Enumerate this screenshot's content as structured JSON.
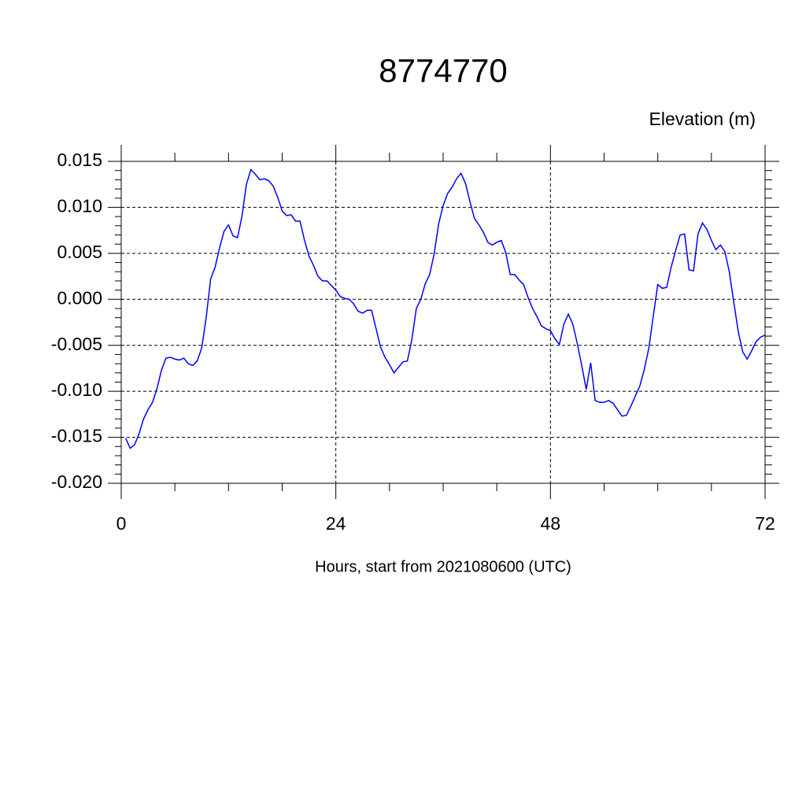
{
  "chart_data": {
    "type": "line",
    "title": "8774770",
    "ylabel": "Elevation (m)",
    "xlabel": "Hours, start from 2021080600 (UTC)",
    "xlim": [
      0,
      72
    ],
    "xticks": [
      0,
      24,
      48,
      72
    ],
    "xminorticks": [
      6,
      12,
      18,
      30,
      36,
      42,
      54,
      60,
      66
    ],
    "ylim": [
      -0.02,
      0.015
    ],
    "yticks": [
      {
        "value": -0.02,
        "label": "-0.020"
      },
      -0.015,
      {
        "value": -0.01,
        "label": "-0.010"
      },
      -0.005,
      {
        "value": 0,
        "label": "0.000"
      },
      0.005,
      {
        "value": 0.01,
        "label": "0.010"
      },
      0.015
    ],
    "yminorticks": [
      -0.019,
      -0.018,
      -0.017,
      -0.016,
      -0.014,
      -0.013,
      -0.012,
      -0.011,
      -0.009,
      -0.008,
      -0.007,
      -0.006,
      -0.004,
      -0.003,
      -0.002,
      -0.001,
      0.001,
      0.002,
      0.003,
      0.004,
      0.006,
      0.007,
      0.008,
      0.009,
      0.011,
      0.012,
      0.013,
      0.014
    ],
    "grid": true,
    "x": [
      0.5,
      1,
      1.5,
      2,
      2.5,
      3,
      3.5,
      4,
      4.5,
      5,
      5.5,
      6,
      6.5,
      7,
      7.5,
      8,
      8.5,
      9,
      9.5,
      10,
      10.5,
      11,
      11.5,
      12,
      12.5,
      13,
      13.5,
      14,
      14.5,
      15,
      15.5,
      16,
      16.5,
      17,
      17.5,
      18,
      18.5,
      19,
      19.5,
      20,
      20.5,
      21,
      21.5,
      22,
      22.5,
      23,
      23.5,
      24,
      24.5,
      25,
      25.5,
      26,
      26.5,
      27,
      27.5,
      28,
      28.5,
      29,
      29.5,
      30,
      30.5,
      31,
      31.5,
      32,
      32.5,
      33,
      33.5,
      34,
      34.5,
      35,
      35.5,
      36,
      36.5,
      37,
      37.5,
      38,
      38.5,
      39,
      39.5,
      40,
      40.5,
      41,
      41.5,
      42,
      42.5,
      43,
      43.5,
      44,
      44.5,
      45,
      45.5,
      46,
      46.5,
      47,
      47.5,
      48,
      48.5,
      49,
      49.5,
      50,
      50.5,
      51,
      51.5,
      52,
      52.5,
      53,
      53.5,
      54,
      54.5,
      55,
      55.5,
      56,
      56.5,
      57,
      57.5,
      58,
      58.5,
      59,
      59.5,
      60,
      60.5,
      61,
      61.5,
      62,
      62.5,
      63,
      63.5,
      64,
      64.5,
      65,
      65.5,
      66,
      66.5,
      67,
      67.5,
      68,
      68.5,
      69,
      69.5,
      70,
      70.5,
      71,
      71.5,
      72
    ],
    "series": [
      {
        "color": "#0000ff",
        "values": [
          -0.0151,
          -0.0162,
          -0.0158,
          -0.0146,
          -0.013,
          -0.012,
          -0.0112,
          -0.0097,
          -0.0077,
          -0.0064,
          -0.0063,
          -0.0065,
          -0.0066,
          -0.0064,
          -0.007,
          -0.0072,
          -0.0067,
          -0.0053,
          -0.002,
          0.0022,
          0.0035,
          0.0056,
          0.0074,
          0.0081,
          0.0069,
          0.0067,
          0.009,
          0.0125,
          0.0141,
          0.0136,
          0.013,
          0.0131,
          0.0129,
          0.0123,
          0.0111,
          0.0096,
          0.0091,
          0.0092,
          0.0085,
          0.0085,
          0.0064,
          0.0047,
          0.0037,
          0.0025,
          0.002,
          0.002,
          0.0015,
          0.001,
          0.0003,
          0.0001,
          0,
          -0.0005,
          -0.0013,
          -0.0015,
          -0.0012,
          -0.0012,
          -0.0032,
          -0.0052,
          -0.0063,
          -0.0071,
          -0.008,
          -0.0074,
          -0.0068,
          -0.0067,
          -0.0044,
          -0.001,
          0,
          0.0017,
          0.0027,
          0.005,
          0.0082,
          0.0102,
          0.0115,
          0.0122,
          0.0131,
          0.0137,
          0.0126,
          0.0106,
          0.0088,
          0.0081,
          0.0073,
          0.0062,
          0.0059,
          0.0062,
          0.0064,
          0.0051,
          0.0027,
          0.0027,
          0.0021,
          0.0016,
          0.0002,
          -0.001,
          -0.0019,
          -0.0029,
          -0.0032,
          -0.0034,
          -0.0043,
          -0.0049,
          -0.0027,
          -0.0016,
          -0.0027,
          -0.0048,
          -0.0072,
          -0.0098,
          -0.0069,
          -0.011,
          -0.0112,
          -0.0112,
          -0.011,
          -0.0113,
          -0.012,
          -0.0127,
          -0.0126,
          -0.0116,
          -0.0105,
          -0.0094,
          -0.0076,
          -0.0053,
          -0.0018,
          0.0016,
          0.0012,
          0.0013,
          0.0035,
          0.0053,
          0.007,
          0.0071,
          0.0032,
          0.0031,
          0.0071,
          0.0083,
          0.0076,
          0.0064,
          0.0054,
          0.0059,
          0.0052,
          0.003,
          -0.0003,
          -0.0035,
          -0.0057,
          -0.0065,
          -0.0056,
          -0.0046,
          -0.0041,
          -0.0039
        ]
      }
    ]
  }
}
